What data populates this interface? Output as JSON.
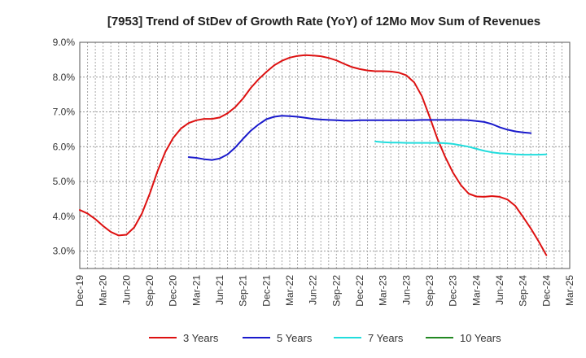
{
  "chart_data": {
    "type": "line",
    "title": "[7953]  Trend of StDev of Growth Rate (YoY) of 12Mo Mov Sum of Revenues",
    "xlabel": "",
    "ylabel": "",
    "ylim": [
      2.5,
      9.0
    ],
    "y_ticks": [
      3.0,
      4.0,
      5.0,
      6.0,
      7.0,
      8.0,
      9.0
    ],
    "y_tick_labels": [
      "3.0%",
      "4.0%",
      "5.0%",
      "6.0%",
      "7.0%",
      "8.0%",
      "9.0%"
    ],
    "x_tick_labels": [
      "Dec-19",
      "Mar-20",
      "Jun-20",
      "Sep-20",
      "Dec-20",
      "Mar-21",
      "Jun-21",
      "Sep-21",
      "Dec-21",
      "Mar-22",
      "Jun-22",
      "Sep-22",
      "Dec-22",
      "Mar-23",
      "Jun-23",
      "Sep-23",
      "Dec-23",
      "Mar-24",
      "Jun-24",
      "Sep-24",
      "Dec-24",
      "Mar-25"
    ],
    "x_start": "Dec-19",
    "x_unit": "months since Dec-19",
    "x_range": [
      0,
      63
    ],
    "grid": true,
    "legend_position": "bottom",
    "series": [
      {
        "name": "3 Years",
        "color": "#dd1111",
        "start_month": 0,
        "values": [
          4.18,
          4.08,
          3.92,
          3.72,
          3.55,
          3.45,
          3.47,
          3.68,
          4.08,
          4.65,
          5.3,
          5.85,
          6.25,
          6.52,
          6.68,
          6.76,
          6.8,
          6.8,
          6.84,
          6.96,
          7.14,
          7.39,
          7.69,
          7.94,
          8.15,
          8.34,
          8.47,
          8.56,
          8.61,
          8.63,
          8.62,
          8.6,
          8.55,
          8.48,
          8.38,
          8.29,
          8.23,
          8.19,
          8.17,
          8.17,
          8.16,
          8.13,
          8.05,
          7.85,
          7.45,
          6.85,
          6.22,
          5.7,
          5.25,
          4.9,
          4.65,
          4.57,
          4.56,
          4.58,
          4.56,
          4.48,
          4.3,
          3.98,
          3.65,
          3.28,
          2.88
        ]
      },
      {
        "name": "5 Years",
        "color": "#1a1acc",
        "start_month": 14,
        "values": [
          5.7,
          5.68,
          5.64,
          5.62,
          5.66,
          5.78,
          5.98,
          6.23,
          6.46,
          6.64,
          6.79,
          6.86,
          6.89,
          6.88,
          6.86,
          6.83,
          6.8,
          6.78,
          6.77,
          6.76,
          6.75,
          6.75,
          6.76,
          6.76,
          6.76,
          6.76,
          6.76,
          6.76,
          6.76,
          6.76,
          6.77,
          6.77,
          6.77,
          6.77,
          6.77,
          6.77,
          6.76,
          6.74,
          6.71,
          6.65,
          6.56,
          6.49,
          6.44,
          6.41,
          6.39
        ]
      },
      {
        "name": "7 Years",
        "color": "#22dddd",
        "start_month": 38,
        "values": [
          6.15,
          6.13,
          6.12,
          6.12,
          6.11,
          6.11,
          6.11,
          6.11,
          6.11,
          6.1,
          6.08,
          6.04,
          6.0,
          5.94,
          5.88,
          5.84,
          5.81,
          5.8,
          5.78,
          5.77,
          5.77,
          5.77,
          5.78
        ]
      },
      {
        "name": "10 Years",
        "color": "#228822",
        "start_month": 0,
        "values": []
      }
    ]
  }
}
